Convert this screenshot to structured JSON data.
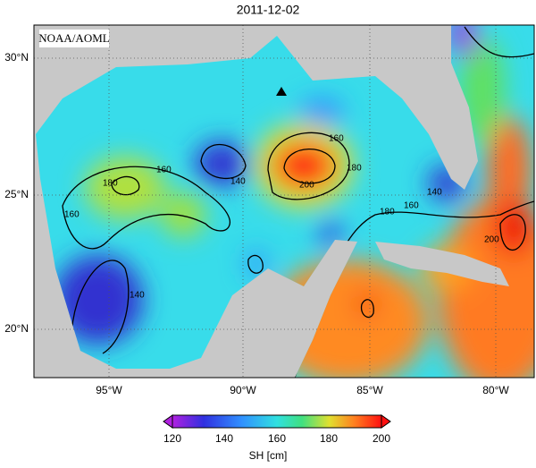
{
  "title": "2011-12-02",
  "logo": "NOAA/AOML",
  "lat_labels": [
    "30°N",
    "25°N",
    "20°N"
  ],
  "lon_labels": [
    "95°W",
    "90°W",
    "85°W",
    "80°W"
  ],
  "contour_labels": [
    "160",
    "180",
    "200",
    "140",
    "160",
    "180",
    "160",
    "140",
    "180",
    "160",
    "140",
    "200"
  ],
  "colorbar": {
    "ticks": [
      "120",
      "140",
      "160",
      "180",
      "200"
    ],
    "label": "SH [cm]"
  }
}
